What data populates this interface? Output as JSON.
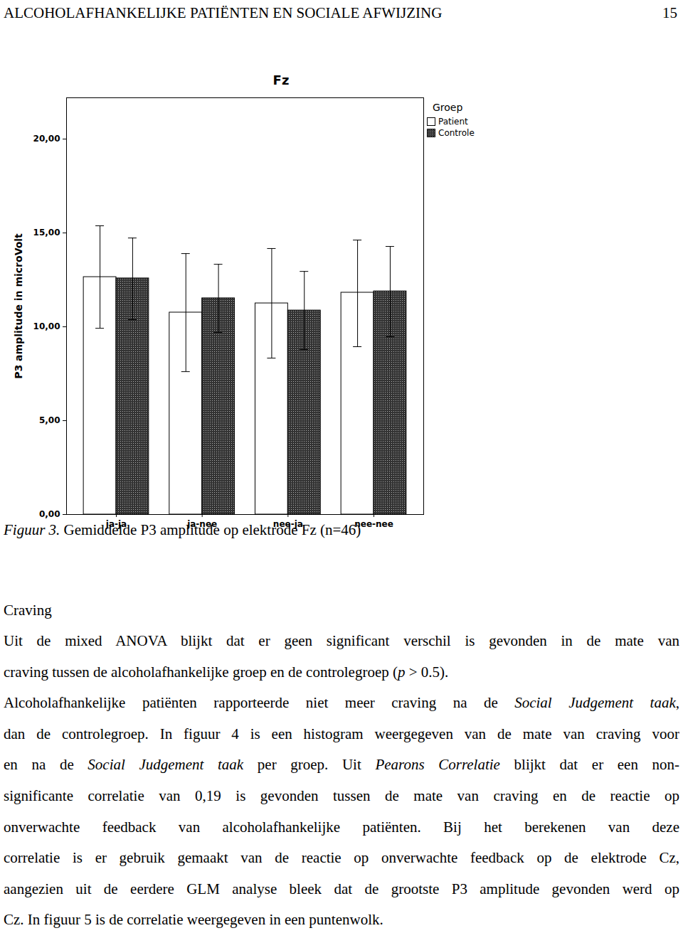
{
  "header": {
    "running_head": "ALCOHOLAFHANKELIJKE PATIËNTEN EN SOCIALE AFWIJZING",
    "page_number": "15"
  },
  "chart_data": {
    "type": "bar",
    "title": "Fz",
    "categories": [
      "ja-ja",
      "ja-nee",
      "nee-ja",
      "nee-nee"
    ],
    "series": [
      {
        "name": "Patient",
        "color": "#ffffff",
        "values": [
          12.65,
          10.76,
          11.25,
          11.82
        ],
        "error_low": [
          9.92,
          7.61,
          8.33,
          8.94
        ],
        "error_high": [
          15.38,
          13.9,
          14.17,
          14.62
        ]
      },
      {
        "name": "Controle",
        "color": "#333333",
        "values": [
          12.58,
          11.52,
          10.87,
          11.89
        ],
        "error_low": [
          10.38,
          9.7,
          8.79,
          9.47
        ],
        "error_high": [
          14.73,
          13.33,
          12.95,
          14.28
        ]
      }
    ],
    "ylabel": "P3 amplitude in microVolt",
    "legend_title": "Groep",
    "legend": "upper right",
    "ylim": [
      0,
      22.2
    ],
    "yticks": [
      {
        "value": 0,
        "label": "0,00"
      },
      {
        "value": 5,
        "label": "5,00"
      },
      {
        "value": 10,
        "label": "10,00"
      },
      {
        "value": 15,
        "label": "15,00"
      },
      {
        "value": 20,
        "label": "20,00"
      }
    ],
    "grid": false
  },
  "caption": {
    "label": "Figuur 3.",
    "text": " Gemiddelde P3 amplitude op elektrode Fz (n=46)"
  },
  "section": {
    "heading": "Craving",
    "paragraphs": [
      [
        [
          {
            "text": "Uit de mixed ANOVA blijkt dat er geen significant verschil is gevonden in de mate van"
          }
        ],
        [
          {
            "text": "craving tussen de alcoholafhankelijke groep en de controlegroep ("
          },
          {
            "text": "p",
            "italic": true
          },
          {
            "text": " > 0.5)."
          }
        ]
      ],
      [
        [
          {
            "text": "Alcoholafhankelijke patiënten rapporteerde niet meer craving na de "
          },
          {
            "text": "Social Judgement taak",
            "italic": true
          },
          {
            "text": ","
          }
        ],
        [
          {
            "text": "dan de controlegroep. In figuur 4 is een histogram weergegeven van de mate van craving voor"
          }
        ],
        [
          {
            "text": "en na de "
          },
          {
            "text": "Social Judgement taak",
            "italic": true
          },
          {
            "text": " per groep. Uit "
          },
          {
            "text": "Pearons Correlatie",
            "italic": true
          },
          {
            "text": " blijkt dat er een non-"
          }
        ],
        [
          {
            "text": "significante correlatie van 0,19 is gevonden tussen de mate van craving en de reactie op"
          }
        ],
        [
          {
            "text": "onverwachte feedback van alcoholafhankelijke patiënten. Bij het berekenen van deze"
          }
        ],
        [
          {
            "text": "correlatie is er gebruik gemaakt van de reactie op onverwachte feedback op de elektrode Cz,"
          }
        ],
        [
          {
            "text": "aangezien uit de eerdere GLM analyse bleek dat de grootste P3 amplitude gevonden werd op"
          }
        ],
        [
          {
            "text": "Cz. In figuur 5 is de correlatie weergegeven in een puntenwolk."
          }
        ]
      ]
    ]
  }
}
